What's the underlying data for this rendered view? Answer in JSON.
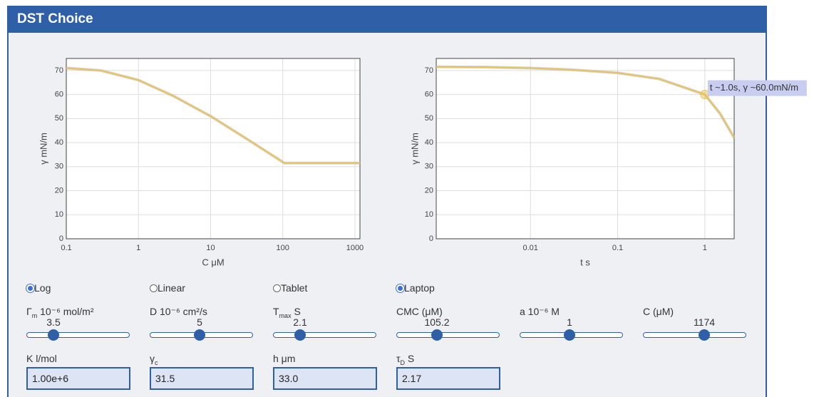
{
  "header": {
    "title": "DST Choice"
  },
  "chart_data": [
    {
      "type": "line",
      "log_x": true,
      "grid": true,
      "x_label": "C μM",
      "y_label": "γ mN/m",
      "color": "#e8c35a",
      "x": [
        0.1,
        0.3,
        1,
        3,
        10,
        30,
        105.2,
        1174
      ],
      "values": [
        71,
        70,
        66,
        59.5,
        51,
        42,
        31.5,
        31.5
      ],
      "xlim": [
        0.1,
        1174
      ],
      "ylim": [
        0,
        75
      ],
      "xticks": [
        0.1,
        1,
        10,
        100,
        1000
      ],
      "yticks": [
        0,
        10,
        20,
        30,
        40,
        50,
        60,
        70
      ]
    },
    {
      "type": "line",
      "log_x": true,
      "grid": true,
      "x_label": "t s",
      "y_label": "γ mN/m",
      "color": "#e8c35a",
      "x": [
        0.00083,
        0.003,
        0.01,
        0.03,
        0.1,
        0.3,
        1,
        1.5,
        2.17
      ],
      "values": [
        71.5,
        71.4,
        71,
        70.3,
        69,
        66.5,
        60,
        52,
        42
      ],
      "xlim": [
        0.00083,
        2.17
      ],
      "ylim": [
        0,
        75
      ],
      "xticks": [
        0.01,
        0.1,
        1
      ],
      "yticks": [
        0,
        10,
        20,
        30,
        40,
        50,
        60,
        70
      ],
      "highlight": {
        "x": 1,
        "y": 60,
        "label": "t ~1.0s, γ ~60.0mN/m"
      }
    }
  ],
  "controls": {
    "modes": [
      {
        "label": "Log",
        "checked": true
      },
      {
        "label": "Linear",
        "checked": false
      },
      {
        "label": "Tablet",
        "checked": false
      },
      {
        "label": "Laptop",
        "checked": true
      }
    ],
    "sliders": [
      {
        "label": [
          "Γ",
          "m",
          " 10⁻⁶ mol/m²"
        ],
        "value": 3.5
      },
      {
        "label": "D 10⁻⁶ cm²/s",
        "value": 5
      },
      {
        "label": [
          "T",
          "max",
          " S"
        ],
        "value": 2.1
      },
      {
        "label": "CMC (μM)",
        "value": 105.2
      },
      {
        "label": "a 10⁻⁶ M",
        "value": 1
      },
      {
        "label": "C (μM)",
        "value": 1174
      }
    ],
    "inputs": [
      {
        "label": "K l/mol",
        "value": "1.00e+6"
      },
      {
        "label": [
          "γ",
          "c"
        ],
        "value": 31.5
      },
      {
        "label": "h μm",
        "value": "33.0"
      },
      {
        "label": [
          "τ",
          "D",
          " S"
        ],
        "value": 2.17
      }
    ]
  }
}
